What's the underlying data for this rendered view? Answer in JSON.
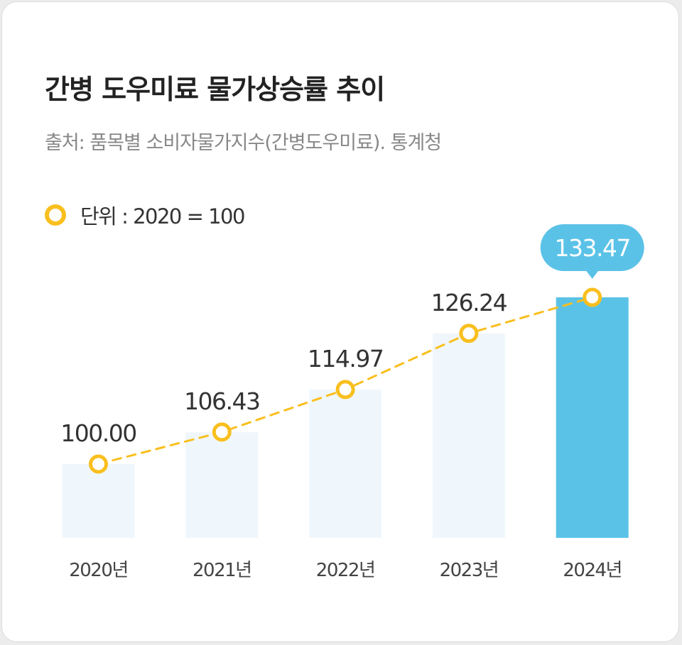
{
  "title": "간병 도우미료 물가상승률 추이",
  "subtitle": "출처: 품목별 소비자물가지수(간병도우미료). 통계청",
  "legend": {
    "unit_label": "단위 : 2020 = 100"
  },
  "colors": {
    "bar_highlight": "#5bc2e7",
    "bar_default": "#f0f7fc",
    "line": "#f9bf1e",
    "marker_fill": "#ffffff",
    "value_text": "#333333",
    "callout_text": "#ffffff",
    "axis_text": "#444444"
  },
  "chart_data": {
    "type": "bar",
    "categories": [
      "2020년",
      "2021년",
      "2022년",
      "2023년",
      "2024년"
    ],
    "series": [
      {
        "values": [
          100.0,
          106.43,
          114.97,
          126.24,
          133.47
        ]
      }
    ],
    "value_labels": [
      "100.00",
      "106.43",
      "114.97",
      "126.24",
      "133.47"
    ],
    "overlay": "dashed line with circular markers through bar values",
    "highlighted_category": "2024년",
    "title": "간병 도우미료 물가상승률 추이",
    "xlabel": "",
    "ylabel": "",
    "grid": false,
    "legend_position": "top-left"
  }
}
